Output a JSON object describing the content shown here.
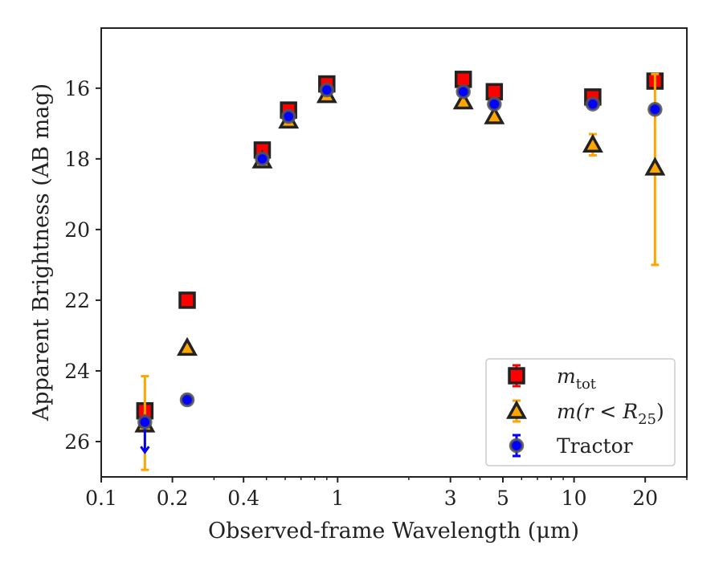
{
  "chart_data": {
    "type": "scatter",
    "xscale": "log",
    "yaxis_inverted": true,
    "xlim": [
      0.1,
      30
    ],
    "ylim": [
      27,
      14.3
    ],
    "xlabel": "Observed-frame Wavelength (μm)",
    "ylabel": "Apparent Brightness (AB mag)",
    "xticks": [
      {
        "value": 0.1,
        "label": "0.1"
      },
      {
        "value": 0.2,
        "label": "0.2"
      },
      {
        "value": 0.4,
        "label": "0.4"
      },
      {
        "value": 1,
        "label": "1"
      },
      {
        "value": 3,
        "label": "3"
      },
      {
        "value": 5,
        "label": "5"
      },
      {
        "value": 10,
        "label": "10"
      },
      {
        "value": 20,
        "label": "20"
      }
    ],
    "yticks": [
      {
        "value": 16,
        "label": "16"
      },
      {
        "value": 18,
        "label": "18"
      },
      {
        "value": 20,
        "label": "20"
      },
      {
        "value": 22,
        "label": "22"
      },
      {
        "value": 24,
        "label": "24"
      },
      {
        "value": 26,
        "label": "26"
      }
    ],
    "grid": false,
    "legend_position": "lower-right",
    "series": [
      {
        "name": "m_tot",
        "legend_main": "m",
        "legend_sub": "tot",
        "marker": "square",
        "color": "#ff0000",
        "edge": "#222222",
        "errcolor": "#ff0000",
        "points": [
          {
            "x": 0.153,
            "y": 25.13,
            "err": 0.1
          },
          {
            "x": 0.231,
            "y": 22.0,
            "err": 0.1
          },
          {
            "x": 0.48,
            "y": 17.75,
            "err": 0.06
          },
          {
            "x": 0.62,
            "y": 16.62,
            "err": 0.05
          },
          {
            "x": 0.9,
            "y": 15.88,
            "err": 0.05
          },
          {
            "x": 3.4,
            "y": 15.75,
            "err": 0.05
          },
          {
            "x": 4.6,
            "y": 16.1,
            "err": 0.05
          },
          {
            "x": 12.0,
            "y": 16.25,
            "err": 0.06
          },
          {
            "x": 22.0,
            "y": 15.8,
            "err": 0.1
          }
        ]
      },
      {
        "name": "m(r < R_25)",
        "legend_main": "m(r < R",
        "legend_sub": "25",
        "legend_close": ")",
        "marker": "triangle",
        "color": "#ffa500",
        "edge": "#222222",
        "errcolor": "#ffa500",
        "points": [
          {
            "x": 0.153,
            "y": 25.52,
            "lo": 24.15,
            "hi": 26.8
          },
          {
            "x": 0.231,
            "y": 23.35,
            "err": 0.1
          },
          {
            "x": 0.48,
            "y": 18.05,
            "err": 0.05
          },
          {
            "x": 0.62,
            "y": 16.92,
            "err": 0.05
          },
          {
            "x": 0.9,
            "y": 16.2,
            "err": 0.05
          },
          {
            "x": 3.4,
            "y": 16.38,
            "err": 0.05
          },
          {
            "x": 4.6,
            "y": 16.8,
            "err": 0.05
          },
          {
            "x": 12.0,
            "y": 17.6,
            "lo": 17.3,
            "hi": 17.9
          },
          {
            "x": 22.0,
            "y": 18.25,
            "lo": 15.6,
            "hi": 21.0
          }
        ]
      },
      {
        "name": "Tractor",
        "legend_main": "Tractor",
        "marker": "circle",
        "color": "#0000ff",
        "edge": "#555555",
        "errcolor": "#0000ff",
        "points": [
          {
            "x": 0.153,
            "y": 25.45,
            "lo": 25.45,
            "hi": 26.3,
            "upper_limit_arrow": true
          },
          {
            "x": 0.231,
            "y": 24.82,
            "err": 0.05
          },
          {
            "x": 0.48,
            "y": 18.0,
            "err": 0.05
          },
          {
            "x": 0.62,
            "y": 16.8,
            "err": 0.05
          },
          {
            "x": 0.9,
            "y": 16.05,
            "err": 0.05
          },
          {
            "x": 3.4,
            "y": 16.1,
            "err": 0.05
          },
          {
            "x": 4.6,
            "y": 16.45,
            "err": 0.05
          },
          {
            "x": 12.0,
            "y": 16.45,
            "err": 0.05
          },
          {
            "x": 22.0,
            "y": 16.6,
            "err": 0.1
          }
        ]
      }
    ]
  }
}
